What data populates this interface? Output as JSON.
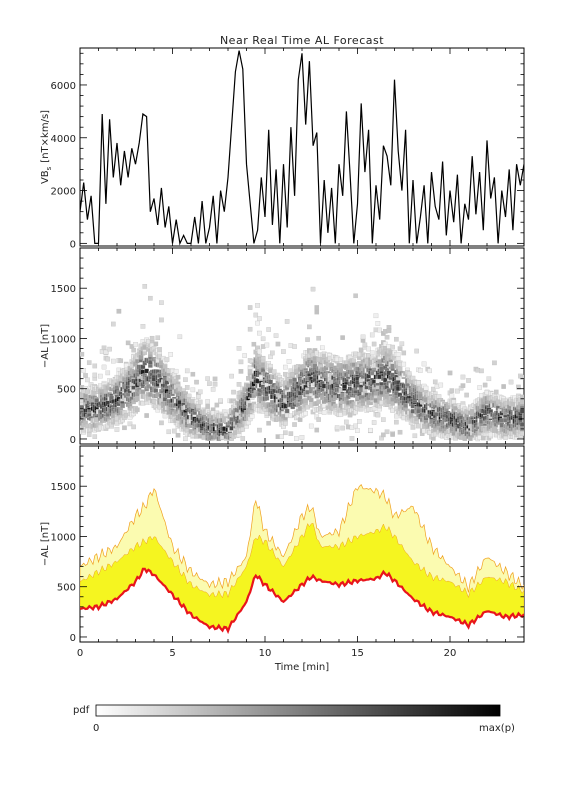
{
  "figure": {
    "title": "Near Real Time AL Forecast",
    "xlabel": "Time [min]"
  },
  "colorbar": {
    "label": "pdf",
    "min_label": "0",
    "max_label": "max(p)"
  },
  "colors": {
    "line": "#000000",
    "mean_line": "#e8141c",
    "band_inner": "#f5f520",
    "band_outer": "#fbfbb0",
    "band_edge": "#f0a020",
    "axis": "#000000"
  },
  "chart_data": [
    {
      "type": "line",
      "panel": "top",
      "ylabel_main": "VB",
      "ylabel_sub": "s",
      "ylabel_units": "[nT×km/s]",
      "xlim": [
        0,
        24
      ],
      "ylim": [
        -100,
        7400
      ],
      "xticks": [
        0,
        5,
        10,
        15,
        20
      ],
      "yticks": [
        0,
        2000,
        4000,
        6000
      ],
      "series": [
        {
          "x": [
            0.0,
            0.2,
            0.4,
            0.6,
            0.8,
            1.0,
            1.2,
            1.4,
            1.6,
            1.8,
            2.0,
            2.2,
            2.4,
            2.6,
            2.8,
            3.0,
            3.2,
            3.4,
            3.6,
            3.8,
            4.0,
            4.2,
            4.4,
            4.6,
            4.8,
            5.0,
            5.2,
            5.4,
            5.6,
            5.8,
            6.0,
            6.2,
            6.4,
            6.6,
            6.8,
            7.0,
            7.2,
            7.4,
            7.6,
            7.8,
            8.0,
            8.2,
            8.4,
            8.6,
            8.8,
            9.0,
            9.2,
            9.4,
            9.6,
            9.8,
            10.0,
            10.2,
            10.4,
            10.6,
            10.8,
            11.0,
            11.2,
            11.4,
            11.6,
            11.8,
            12.0,
            12.2,
            12.4,
            12.6,
            12.8,
            13.0,
            13.2,
            13.4,
            13.6,
            13.8,
            14.0,
            14.2,
            14.4,
            14.6,
            14.8,
            15.0,
            15.2,
            15.4,
            15.6,
            15.8,
            16.0,
            16.2,
            16.4,
            16.6,
            16.8,
            17.0,
            17.2,
            17.4,
            17.6,
            17.8,
            18.0,
            18.2,
            18.4,
            18.6,
            18.8,
            19.0,
            19.2,
            19.4,
            19.6,
            19.8,
            20.0,
            20.2,
            20.4,
            20.6,
            20.8,
            21.0,
            21.2,
            21.4,
            21.6,
            21.8,
            22.0,
            22.2,
            22.4,
            22.6,
            22.8,
            23.0,
            23.2,
            23.4,
            23.6,
            23.8,
            24.0
          ],
          "y": [
            1200,
            2300,
            900,
            1800,
            0,
            0,
            4900,
            1500,
            4700,
            2500,
            3800,
            2200,
            3500,
            2500,
            3600,
            3000,
            3800,
            4900,
            4800,
            1200,
            1700,
            700,
            2100,
            600,
            1400,
            0,
            900,
            0,
            300,
            0,
            0,
            1000,
            0,
            1600,
            0,
            600,
            1800,
            0,
            2000,
            1200,
            2500,
            4500,
            6500,
            7300,
            6600,
            3000,
            1500,
            0,
            500,
            2500,
            1000,
            4300,
            700,
            2800,
            0,
            3000,
            600,
            4400,
            1800,
            6200,
            7200,
            4500,
            6900,
            3700,
            4200,
            0,
            2400,
            400,
            2100,
            0,
            3000,
            1800,
            5000,
            2600,
            0,
            1500,
            5300,
            2700,
            4300,
            0,
            2200,
            900,
            3700,
            3300,
            2200,
            6200,
            3500,
            2000,
            4300,
            0,
            2400,
            0,
            1000,
            2200,
            0,
            2700,
            1400,
            900,
            3100,
            300,
            2000,
            800,
            2600,
            0,
            1500,
            900,
            3300,
            1100,
            2700,
            500,
            3900,
            1700,
            2500,
            0,
            2000,
            1000,
            2800,
            500,
            3000,
            2200,
            3000
          ]
        }
      ]
    },
    {
      "type": "heatmap",
      "panel": "middle",
      "ylabel": "−AL [nT]",
      "xlim": [
        0,
        24
      ],
      "ylim": [
        -50,
        1900
      ],
      "xticks": [
        0,
        5,
        10,
        15,
        20
      ],
      "yticks": [
        0,
        500,
        1000,
        1500
      ],
      "density_center": {
        "x": [
          0.0,
          1.0,
          2.0,
          3.0,
          3.5,
          4.0,
          5.0,
          6.0,
          7.0,
          8.0,
          9.0,
          9.5,
          10.0,
          11.0,
          12.0,
          12.5,
          13.0,
          14.0,
          15.0,
          16.0,
          16.5,
          17.0,
          18.0,
          19.0,
          20.0,
          21.0,
          22.0,
          23.0,
          24.0
        ],
        "y": [
          280,
          300,
          380,
          550,
          680,
          620,
          420,
          220,
          100,
          80,
          350,
          620,
          520,
          350,
          520,
          600,
          560,
          520,
          560,
          580,
          640,
          560,
          380,
          250,
          200,
          120,
          260,
          200,
          220
        ]
      }
    },
    {
      "type": "area",
      "panel": "bottom",
      "ylabel": "−AL [nT]",
      "xlim": [
        0,
        24
      ],
      "ylim": [
        -50,
        1900
      ],
      "xticks": [
        0,
        5,
        10,
        15,
        20
      ],
      "yticks": [
        0,
        500,
        1000,
        1500
      ],
      "x": [
        0.0,
        1.0,
        2.0,
        3.0,
        3.5,
        4.0,
        5.0,
        6.0,
        7.0,
        8.0,
        9.0,
        9.5,
        10.0,
        11.0,
        12.0,
        12.5,
        13.0,
        14.0,
        15.0,
        16.0,
        16.5,
        17.0,
        18.0,
        19.0,
        20.0,
        21.0,
        22.0,
        23.0,
        24.0
      ],
      "mean": [
        280,
        300,
        380,
        550,
        680,
        620,
        420,
        220,
        100,
        80,
        350,
        620,
        520,
        350,
        520,
        600,
        560,
        520,
        560,
        580,
        640,
        560,
        380,
        250,
        200,
        120,
        260,
        200,
        220
      ],
      "inner_upper": [
        550,
        650,
        750,
        900,
        950,
        1000,
        750,
        520,
        420,
        430,
        700,
        1000,
        950,
        700,
        1000,
        1150,
        900,
        900,
        1000,
        1050,
        1100,
        1000,
        750,
        600,
        550,
        430,
        600,
        550,
        450
      ],
      "outer_upper": [
        700,
        800,
        900,
        1200,
        1300,
        1480,
        900,
        650,
        520,
        550,
        800,
        1380,
        1050,
        800,
        1200,
        1300,
        1000,
        1050,
        1500,
        1450,
        1400,
        1200,
        1300,
        900,
        700,
        500,
        800,
        650,
        500
      ]
    }
  ]
}
